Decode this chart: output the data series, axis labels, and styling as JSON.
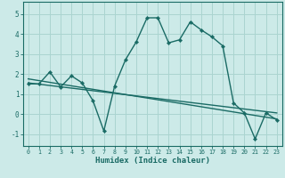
{
  "xlabel": "Humidex (Indice chaleur)",
  "ylabel": "",
  "background_color": "#cceae8",
  "grid_color": "#aad4d0",
  "line_color": "#1a6b65",
  "xlim": [
    -0.5,
    23.5
  ],
  "ylim": [
    -1.6,
    5.6
  ],
  "xticks": [
    0,
    1,
    2,
    3,
    4,
    5,
    6,
    7,
    8,
    9,
    10,
    11,
    12,
    13,
    14,
    15,
    16,
    17,
    18,
    19,
    20,
    21,
    22,
    23
  ],
  "yticks": [
    -1,
    0,
    1,
    2,
    3,
    4,
    5
  ],
  "series1_x": [
    0,
    1,
    2,
    3,
    4,
    5,
    6,
    7,
    8,
    9,
    10,
    11,
    12,
    13,
    14,
    15,
    16,
    17,
    18,
    19,
    20,
    21,
    22,
    23
  ],
  "series1_y": [
    1.5,
    1.5,
    2.1,
    1.35,
    1.9,
    1.55,
    0.65,
    -0.85,
    1.4,
    2.7,
    3.6,
    4.8,
    4.8,
    3.55,
    3.7,
    4.6,
    4.2,
    3.85,
    3.4,
    0.55,
    0.05,
    -1.25,
    0.05,
    -0.3
  ],
  "series2_x": [
    0,
    23
  ],
  "series2_y": [
    1.75,
    -0.25
  ],
  "series3_x": [
    0,
    23
  ],
  "series3_y": [
    1.55,
    0.05
  ],
  "marker_size": 2.2,
  "line_width": 1.0
}
